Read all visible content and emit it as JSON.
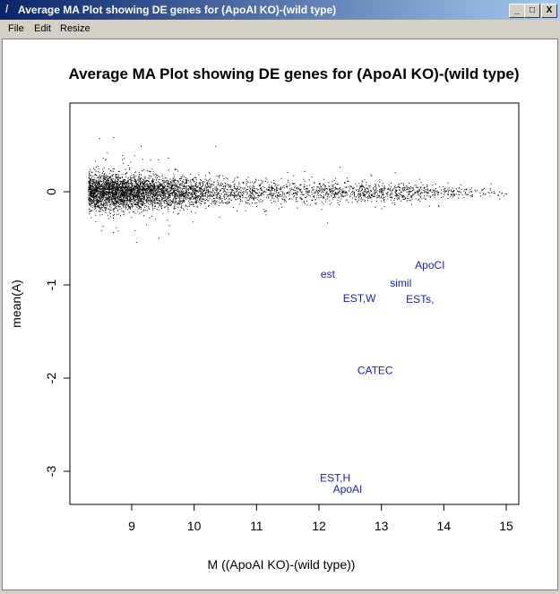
{
  "window": {
    "title": "Average MA Plot showing DE genes for (ApoAI KO)-(wild type)",
    "buttons": {
      "minimize": "_",
      "maximize": "□",
      "close": "X"
    }
  },
  "menu": {
    "items": [
      "File",
      "Edit",
      "Resize"
    ]
  },
  "chart_data": {
    "type": "scatter",
    "title": "Average MA Plot showing DE genes for (ApoAI KO)-(wild type)",
    "xlabel": "M ((ApoAI KO)-(wild type))",
    "ylabel": "mean(A)",
    "xlim": [
      8.1,
      15.2
    ],
    "ylim": [
      -3.33,
      0.98
    ],
    "xticks": [
      9,
      10,
      11,
      12,
      13,
      14,
      15
    ],
    "yticks": [
      0,
      -1,
      -2,
      -3
    ],
    "grid": false,
    "point_color": "#000000",
    "label_color": "#2020b0",
    "labeled_points": [
      {
        "label": "est",
        "x": 12.2,
        "y": -1.0
      },
      {
        "label": "EST,W",
        "x": 12.59,
        "y": -1.05
      },
      {
        "label": "simil",
        "x": 13.31,
        "y": -0.98
      },
      {
        "label": "ApoCI",
        "x": 13.72,
        "y": -0.94
      },
      {
        "label": "ESTs,",
        "x": 13.59,
        "y": -1.02
      },
      {
        "label": "CATEC",
        "x": 12.9,
        "y": -1.92
      },
      {
        "label": "EST,H",
        "x": 12.26,
        "y": -3.07
      },
      {
        "label": "ApoAI",
        "x": 12.46,
        "y": -3.19
      }
    ]
  }
}
